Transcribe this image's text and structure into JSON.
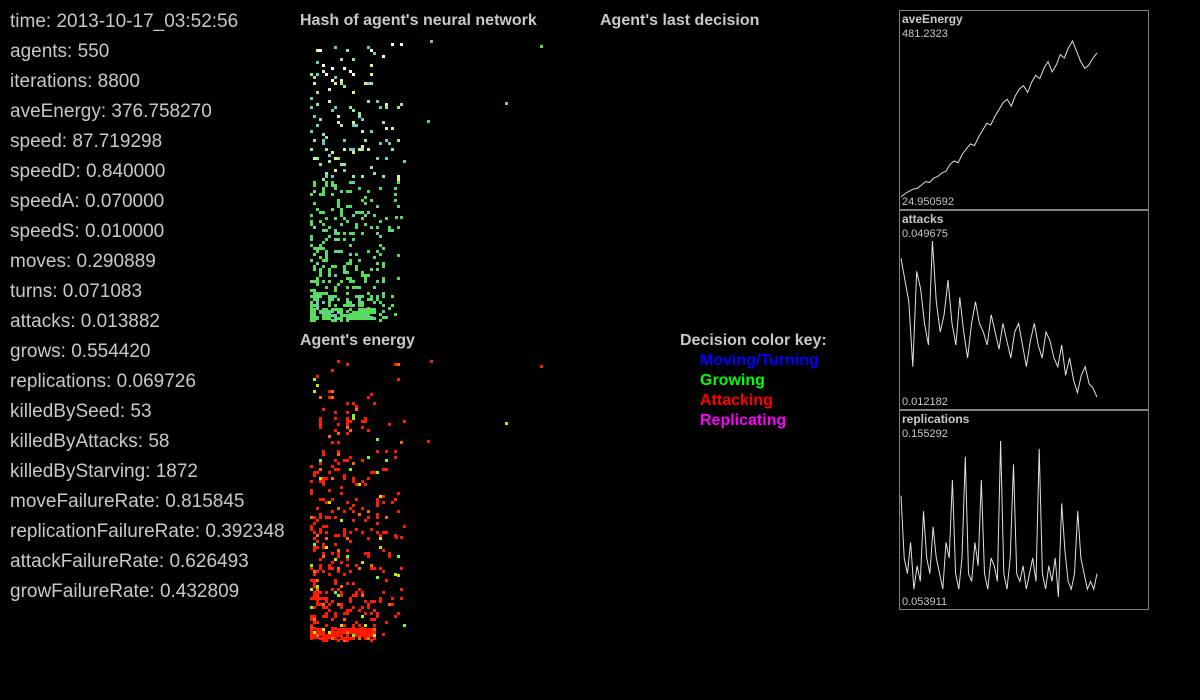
{
  "stats": [
    {
      "label": "time",
      "value": "2013-10-17_03:52:56"
    },
    {
      "label": "agents",
      "value": "550"
    },
    {
      "label": "iterations",
      "value": "8800"
    },
    {
      "label": "aveEnergy",
      "value": "376.758270"
    },
    {
      "label": "speed",
      "value": "87.719298"
    },
    {
      "label": "speedD",
      "value": "0.840000"
    },
    {
      "label": "speedA",
      "value": "0.070000"
    },
    {
      "label": "speedS",
      "value": "0.010000"
    },
    {
      "label": "moves",
      "value": "0.290889"
    },
    {
      "label": "turns",
      "value": "0.071083"
    },
    {
      "label": "attacks",
      "value": "0.013882"
    },
    {
      "label": "grows",
      "value": "0.554420"
    },
    {
      "label": "replications",
      "value": "0.069726"
    },
    {
      "label": "killedBySeed",
      "value": "53"
    },
    {
      "label": "killedByAttacks",
      "value": "58"
    },
    {
      "label": "killedByStarving",
      "value": "1872"
    },
    {
      "label": "moveFailureRate",
      "value": "0.815845"
    },
    {
      "label": "replicationFailureRate",
      "value": "0.392348"
    },
    {
      "label": "attackFailureRate",
      "value": "0.626493"
    },
    {
      "label": "growFailureRate",
      "value": "0.432809"
    }
  ],
  "panels": {
    "hash": {
      "title": "Hash of agent's neural network"
    },
    "decision": {
      "title": "Agent's last decision"
    },
    "energy": {
      "title": "Agent's energy"
    }
  },
  "decision_key": {
    "title": "Decision color key:",
    "items": [
      {
        "label": "Moving/Turning",
        "color": "#0000ff"
      },
      {
        "label": "Growing",
        "color": "#00ff00"
      },
      {
        "label": "Attacking",
        "color": "#ff0000"
      },
      {
        "label": "Replicating",
        "color": "#ff00ff"
      }
    ]
  },
  "graphs": [
    {
      "name": "aveEnergy",
      "max": "481.2323",
      "min": "24.950592",
      "values": [
        25,
        35,
        42,
        48,
        50,
        60,
        70,
        68,
        80,
        85,
        95,
        100,
        120,
        130,
        125,
        150,
        165,
        180,
        175,
        200,
        220,
        240,
        235,
        260,
        280,
        300,
        310,
        290,
        320,
        340,
        350,
        330,
        360,
        380,
        370,
        400,
        420,
        390,
        410,
        440,
        430,
        460,
        480,
        450,
        420,
        400,
        410,
        430,
        445
      ]
    },
    {
      "name": "attacks",
      "max": "0.049675",
      "min": "0.012182",
      "values": [
        0.045,
        0.04,
        0.035,
        0.02,
        0.042,
        0.038,
        0.03,
        0.025,
        0.049,
        0.035,
        0.028,
        0.032,
        0.04,
        0.03,
        0.025,
        0.036,
        0.028,
        0.022,
        0.03,
        0.035,
        0.03,
        0.028,
        0.025,
        0.032,
        0.028,
        0.024,
        0.03,
        0.026,
        0.022,
        0.028,
        0.03,
        0.025,
        0.02,
        0.026,
        0.03,
        0.025,
        0.022,
        0.028,
        0.026,
        0.022,
        0.02,
        0.025,
        0.018,
        0.022,
        0.017,
        0.014,
        0.018,
        0.02,
        0.016,
        0.015,
        0.013
      ]
    },
    {
      "name": "replications",
      "max": "0.155292",
      "min": "0.053911",
      "values": [
        0.12,
        0.08,
        0.07,
        0.09,
        0.06,
        0.075,
        0.065,
        0.11,
        0.08,
        0.07,
        0.1,
        0.08,
        0.07,
        0.06,
        0.09,
        0.08,
        0.13,
        0.07,
        0.06,
        0.08,
        0.145,
        0.07,
        0.065,
        0.09,
        0.075,
        0.13,
        0.07,
        0.06,
        0.08,
        0.075,
        0.065,
        0.155,
        0.07,
        0.06,
        0.08,
        0.14,
        0.07,
        0.065,
        0.075,
        0.06,
        0.07,
        0.08,
        0.065,
        0.15,
        0.07,
        0.06,
        0.075,
        0.065,
        0.08,
        0.055,
        0.115,
        0.085,
        0.065,
        0.06,
        0.07,
        0.11,
        0.08,
        0.07,
        0.06,
        0.065,
        0.06,
        0.07
      ]
    }
  ]
}
